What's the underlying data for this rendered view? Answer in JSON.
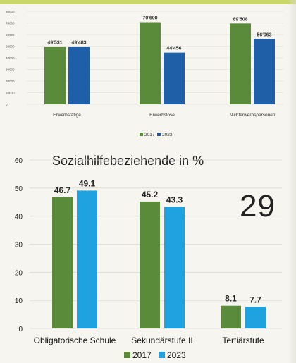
{
  "page_number": "29",
  "colors": {
    "series_2017": "#5a8b3a",
    "series_2023": "#1f5fa8",
    "series_2023_chart2": "#1fa3e0",
    "grid": "#d9d9d4",
    "background": "#f6f5f0"
  },
  "chart_data": [
    {
      "type": "bar",
      "title": "",
      "categories": [
        "Erwerbstätige",
        "Erwerbslose",
        "Nichterwerbspersonen"
      ],
      "series": [
        {
          "name": "2017",
          "values": [
            49531,
            70600,
            69508
          ],
          "labels": [
            "49'531",
            "70'600",
            "69'508"
          ]
        },
        {
          "name": "2023",
          "values": [
            49483,
            44456,
            56063
          ],
          "labels": [
            "49'483",
            "44'456",
            "56'063"
          ]
        }
      ],
      "ylim": [
        0,
        80000
      ],
      "yticks": [
        "0",
        "10000",
        "20000",
        "30000",
        "40000",
        "50000",
        "60000",
        "70000",
        "80000"
      ],
      "grid": true,
      "legend": "bottom"
    },
    {
      "type": "bar",
      "title": "Sozialhilfebeziehende in %",
      "categories": [
        "Obligatorische Schule",
        "Sekundärstufe II",
        "Tertiärstufe"
      ],
      "series": [
        {
          "name": "2017",
          "values": [
            46.7,
            45.2,
            8.1
          ],
          "labels": [
            "46.7",
            "45.2",
            "8.1"
          ]
        },
        {
          "name": "2023",
          "values": [
            49.1,
            43.3,
            7.7
          ],
          "labels": [
            "49.1",
            "43.3",
            "7.7"
          ]
        }
      ],
      "ylim": [
        0,
        60
      ],
      "yticks": [
        "0",
        "10",
        "20",
        "30",
        "40",
        "50",
        "60"
      ],
      "grid": true,
      "legend": "bottom"
    }
  ]
}
